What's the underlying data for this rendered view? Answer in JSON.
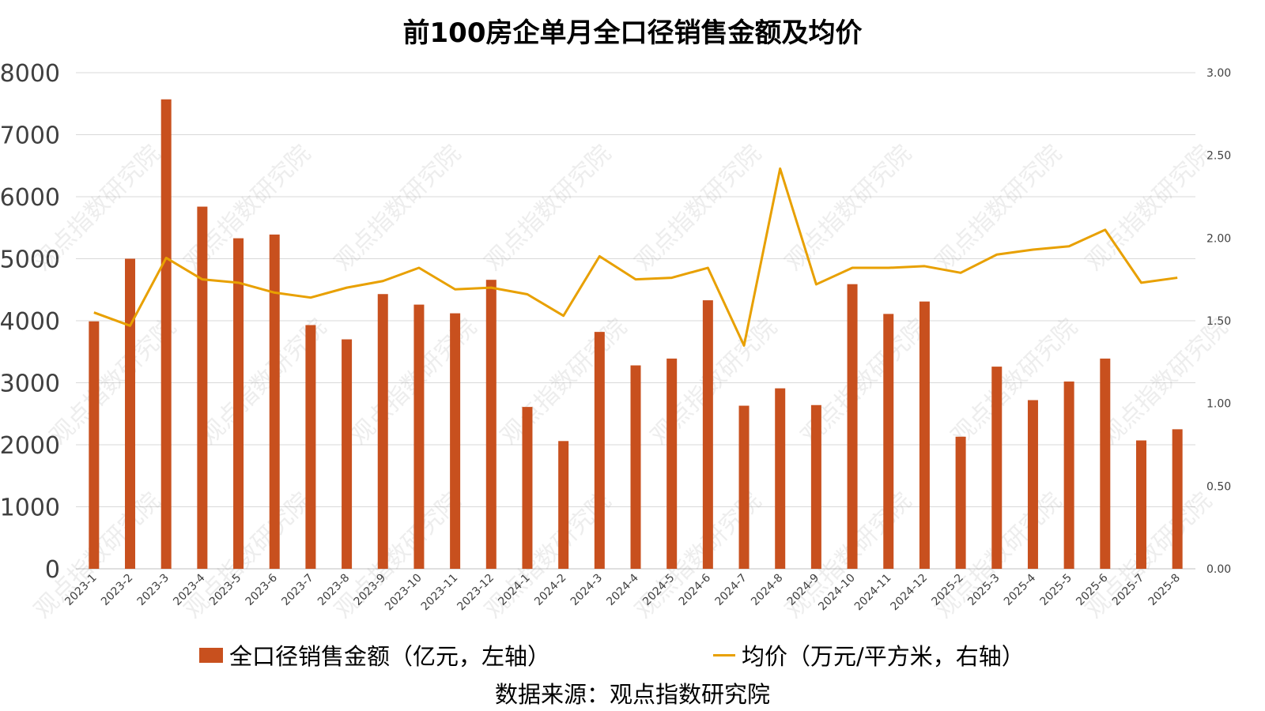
{
  "chart_data": {
    "type": "bar+line",
    "title": "前100房企单月全口径销售金额及均价",
    "categories": [
      "2023-1",
      "2023-2",
      "2023-3",
      "2023-4",
      "2023-5",
      "2023-6",
      "2023-7",
      "2023-8",
      "2023-9",
      "2023-10",
      "2023-11",
      "2023-12",
      "2024-1",
      "2024-2",
      "2024-3",
      "2024-4",
      "2024-5",
      "2024-6",
      "2024-7",
      "2024-8",
      "2024-9",
      "2024-10",
      "2024-11",
      "2024-12",
      "2025-2",
      "2025-3",
      "2025-4",
      "2025-5",
      "2025-6",
      "2025-7",
      "2025-8"
    ],
    "series": [
      {
        "name": "全口径销售金额（亿元，左轴）",
        "type": "bar",
        "axis": "left",
        "color": "#C8501E",
        "values": [
          3990,
          5000,
          7570,
          5840,
          5330,
          5390,
          3930,
          3700,
          4430,
          4260,
          4120,
          4660,
          2610,
          2060,
          3820,
          3280,
          3390,
          4330,
          2630,
          2910,
          2640,
          4590,
          4110,
          4310,
          2130,
          3260,
          2720,
          3020,
          3390,
          2070,
          2250
        ]
      },
      {
        "name": "均价（万元/平方米，右轴）",
        "type": "line",
        "axis": "right",
        "color": "#E8A000",
        "values": [
          1.55,
          1.47,
          1.88,
          1.75,
          1.73,
          1.67,
          1.64,
          1.7,
          1.74,
          1.82,
          1.69,
          1.7,
          1.66,
          1.53,
          1.89,
          1.75,
          1.76,
          1.82,
          1.35,
          2.42,
          1.72,
          1.82,
          1.82,
          1.83,
          1.79,
          1.9,
          1.93,
          1.95,
          2.05,
          1.73,
          1.76
        ]
      }
    ],
    "ylim_left": [
      0,
      8000
    ],
    "yticks_left": [
      "0",
      "1000",
      "2000",
      "3000",
      "4000",
      "5000",
      "6000",
      "7000",
      "8000"
    ],
    "ylim_right": [
      0,
      3
    ],
    "yticks_right": [
      "0.00",
      "0.50",
      "1.00",
      "1.50",
      "2.00",
      "2.50",
      "3.00"
    ],
    "grid": true,
    "legend_position": "bottom"
  },
  "source_text": "数据来源：观点指数研究院",
  "watermark_text": "观点指数研究院"
}
